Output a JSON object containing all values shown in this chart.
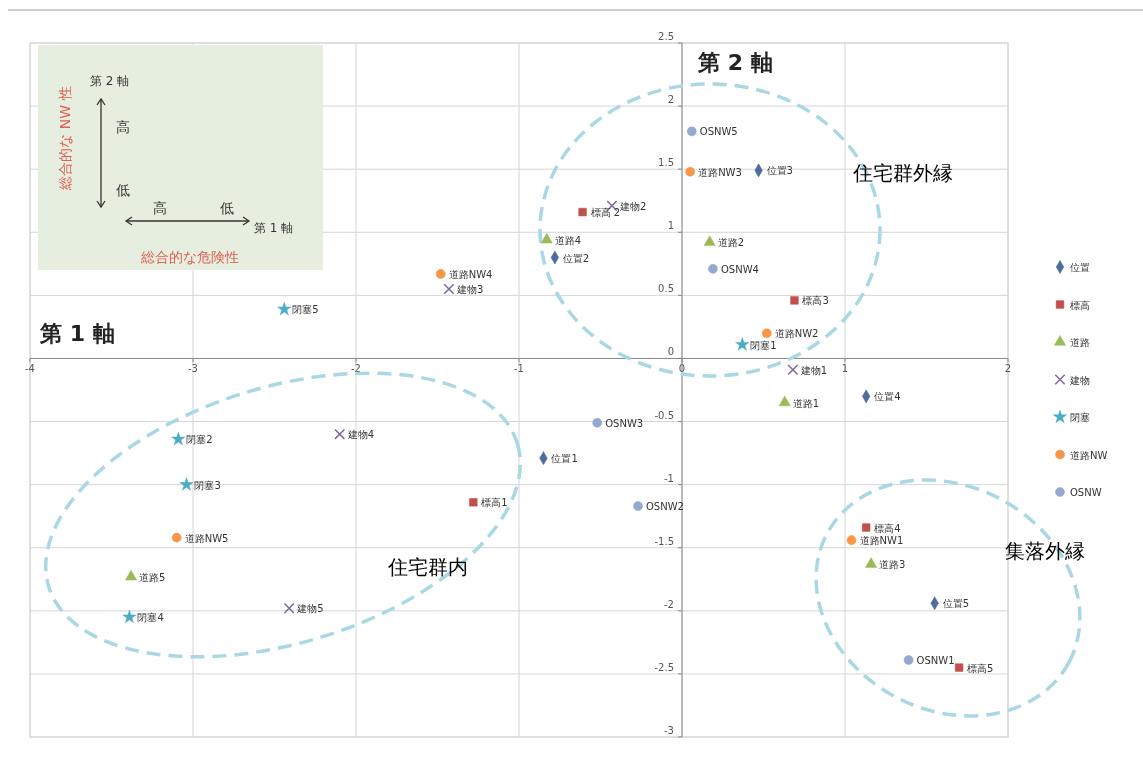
{
  "chart_data": {
    "type": "scatter",
    "xlabel": "第 1 軸",
    "ylabel": "第 2 軸",
    "xlim": [
      -4,
      2
    ],
    "xticks": [
      -4,
      -3,
      -2,
      -1,
      0,
      1,
      2
    ],
    "ylim": [
      -3,
      2.5
    ],
    "yticks": [
      -3,
      -2.5,
      -2,
      -1.5,
      -1,
      -0.5,
      0,
      0.5,
      1,
      1.5,
      2,
      2.5
    ],
    "grid": true,
    "legend": "right",
    "series": [
      {
        "name": "位置",
        "color": "#4f6d9a",
        "marker": "diamond",
        "x": [
          -0.85,
          -0.78,
          0.47,
          1.13,
          1.55
        ],
        "values": [
          -0.79,
          0.8,
          1.49,
          -0.3,
          -1.94
        ]
      },
      {
        "name": "標高",
        "color": "#c0504d",
        "marker": "square",
        "x": [
          -1.28,
          -0.61,
          0.69,
          1.13,
          1.7
        ],
        "values": [
          -1.14,
          1.16,
          0.46,
          -1.34,
          -2.45
        ]
      },
      {
        "name": "道路",
        "color": "#9bbb59",
        "marker": "triangle",
        "x": [
          0.63,
          0.17,
          1.16,
          -0.83,
          -3.38
        ],
        "values": [
          -0.35,
          0.92,
          -1.63,
          0.94,
          -1.73
        ]
      },
      {
        "name": "建物",
        "color": "#8064a2",
        "marker": "cross",
        "x": [
          0.68,
          -0.43,
          -1.43,
          -2.1,
          -2.41
        ],
        "values": [
          -0.09,
          1.21,
          0.55,
          -0.6,
          -1.98
        ]
      },
      {
        "name": "閉塞",
        "color": "#4bacc6",
        "marker": "star",
        "x": [
          0.37,
          -3.09,
          -3.04,
          -3.39,
          -2.44
        ],
        "values": [
          0.11,
          -0.64,
          -1.0,
          -2.05,
          0.39
        ]
      },
      {
        "name": "道路NW",
        "color": "#f79646",
        "marker": "circle",
        "x": [
          1.04,
          0.52,
          0.05,
          -1.48,
          -3.1
        ],
        "values": [
          -1.44,
          0.2,
          1.48,
          0.67,
          -1.42
        ]
      },
      {
        "name": "OSNW",
        "color": "#94a9cf",
        "marker": "circle",
        "x": [
          1.39,
          -0.27,
          -0.52,
          0.19,
          0.06
        ],
        "values": [
          -2.39,
          -1.17,
          -0.51,
          0.71,
          1.8
        ]
      }
    ],
    "annotations": [
      {
        "text": "位置1",
        "x": -0.85,
        "y": -0.79
      },
      {
        "text": "位置2",
        "x": -0.78,
        "y": 0.8
      },
      {
        "text": "位置3",
        "x": 0.47,
        "y": 1.49
      },
      {
        "text": "位置4",
        "x": 1.13,
        "y": -0.3
      },
      {
        "text": "位置5",
        "x": 1.55,
        "y": -1.94
      },
      {
        "text": "標高1",
        "x": -1.28,
        "y": -1.14
      },
      {
        "text": "標高 2",
        "x": -0.61,
        "y": 1.16
      },
      {
        "text": "標高3",
        "x": 0.69,
        "y": 0.46
      },
      {
        "text": "標高4",
        "x": 1.13,
        "y": -1.34
      },
      {
        "text": "標高5",
        "x": 1.7,
        "y": -2.45
      },
      {
        "text": "道路1",
        "x": 0.63,
        "y": -0.35
      },
      {
        "text": "道路2",
        "x": 0.17,
        "y": 0.92
      },
      {
        "text": "道路3",
        "x": 1.16,
        "y": -1.63
      },
      {
        "text": "道路4",
        "x": -0.83,
        "y": 0.94
      },
      {
        "text": "道路5",
        "x": -3.38,
        "y": -1.73
      },
      {
        "text": "建物1",
        "x": 0.68,
        "y": -0.09
      },
      {
        "text": "建物2",
        "x": -0.43,
        "y": 1.21
      },
      {
        "text": "建物3",
        "x": -1.43,
        "y": 0.55
      },
      {
        "text": "建物4",
        "x": -2.1,
        "y": -0.6
      },
      {
        "text": "建物5",
        "x": -2.41,
        "y": -1.98
      },
      {
        "text": "閉塞1",
        "x": 0.37,
        "y": 0.11
      },
      {
        "text": "閉塞2",
        "x": -3.09,
        "y": -0.64
      },
      {
        "text": "閉塞3",
        "x": -3.04,
        "y": -1.0
      },
      {
        "text": "閉塞4",
        "x": -3.39,
        "y": -2.05
      },
      {
        "text": "閉塞5",
        "x": -2.44,
        "y": 0.39
      },
      {
        "text": "道路NW1",
        "x": 1.04,
        "y": -1.44
      },
      {
        "text": "道路NW2",
        "x": 0.52,
        "y": 0.2
      },
      {
        "text": "道路NW3",
        "x": 0.05,
        "y": 1.48
      },
      {
        "text": "道路NW4",
        "x": -1.48,
        "y": 0.67
      },
      {
        "text": "道路NW5",
        "x": -3.1,
        "y": -1.42
      },
      {
        "text": "OSNW1",
        "x": 1.39,
        "y": -2.39
      },
      {
        "text": "OSNW2",
        "x": -0.27,
        "y": -1.17
      },
      {
        "text": "OSNW3",
        "x": -0.52,
        "y": -0.51
      },
      {
        "text": "OSNW4",
        "x": 0.19,
        "y": 0.71
      },
      {
        "text": "OSNW5",
        "x": 0.06,
        "y": 1.8
      },
      "住宅群外縁",
      "住宅群内",
      "集落外縁",
      "第 2 軸",
      "高",
      "低",
      "高",
      "低",
      "第 1 軸",
      "総合的な NW 性",
      "総合的な危険性"
    ]
  }
}
